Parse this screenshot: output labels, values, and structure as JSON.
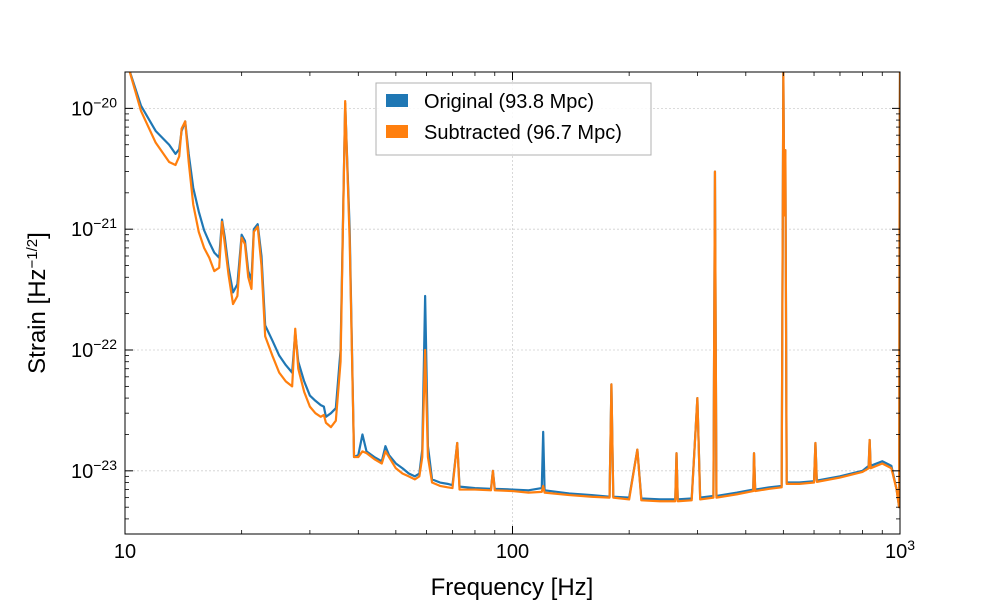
{
  "chart_data": {
    "type": "line",
    "xlabel": "Frequency [Hz]",
    "ylabel": "Strain [Hz",
    "ylabel_exponent": "−1/2",
    "ylabel_close": "]",
    "xscale": "log",
    "yscale": "log",
    "xlim": [
      10,
      1000
    ],
    "ylim": [
      3e-24,
      2e-20
    ],
    "grid": true,
    "legend_position": "top-center",
    "x_ticks": [
      {
        "value": 10,
        "base": "10",
        "exp": ""
      },
      {
        "value": 100,
        "base": "100",
        "exp": ""
      },
      {
        "value": 1000,
        "base": "10",
        "exp": "3"
      }
    ],
    "y_ticks": [
      {
        "value": 1e-20,
        "base": "10",
        "exp": "−20"
      },
      {
        "value": 1e-21,
        "base": "10",
        "exp": "−21"
      },
      {
        "value": 1e-22,
        "base": "10",
        "exp": "−22"
      },
      {
        "value": 1e-23,
        "base": "10",
        "exp": "−23"
      }
    ],
    "series": [
      {
        "name": "Original (93.8 Mpc)",
        "color": "#1f77b4",
        "points": [
          [
            10.2,
            2.2e-20
          ],
          [
            11,
            1.05e-20
          ],
          [
            12,
            6.5e-21
          ],
          [
            13,
            5e-21
          ],
          [
            13.5,
            4.2e-21
          ],
          [
            13.8,
            4.6e-21
          ],
          [
            14,
            6.5e-21
          ],
          [
            14.3,
            7.8e-21
          ],
          [
            14.6,
            4.2e-21
          ],
          [
            15,
            2.2e-21
          ],
          [
            15.5,
            1.4e-21
          ],
          [
            16,
            9.8e-22
          ],
          [
            16.5,
            7.8e-22
          ],
          [
            17,
            6.4e-22
          ],
          [
            17.5,
            5.8e-22
          ],
          [
            17.8,
            1.2e-21
          ],
          [
            18.1,
            8.5e-22
          ],
          [
            18.5,
            4.8e-22
          ],
          [
            19,
            3e-22
          ],
          [
            19.5,
            3.5e-22
          ],
          [
            20,
            9e-22
          ],
          [
            20.4,
            8e-22
          ],
          [
            20.8,
            4.5e-22
          ],
          [
            21.2,
            3.8e-22
          ],
          [
            21.5,
            1e-21
          ],
          [
            22,
            1.1e-21
          ],
          [
            22.5,
            6e-22
          ],
          [
            23,
            1.6e-22
          ],
          [
            24,
            1.2e-22
          ],
          [
            25,
            9e-23
          ],
          [
            26,
            7.5e-23
          ],
          [
            27,
            6.5e-23
          ],
          [
            27.5,
            1.4e-22
          ],
          [
            28,
            8e-23
          ],
          [
            29,
            5.5e-23
          ],
          [
            30,
            4.2e-23
          ],
          [
            31,
            3.8e-23
          ],
          [
            32,
            3.5e-23
          ],
          [
            32.6,
            3.4e-23
          ],
          [
            33,
            2.8e-23
          ],
          [
            34,
            3e-23
          ],
          [
            35,
            3.3e-23
          ],
          [
            36,
            1e-22
          ],
          [
            37,
            1.1e-20
          ],
          [
            38,
            1e-21
          ],
          [
            39,
            1.3e-23
          ],
          [
            40,
            1.35e-23
          ],
          [
            41,
            2e-23
          ],
          [
            42,
            1.45e-23
          ],
          [
            44,
            1.3e-23
          ],
          [
            46,
            1.2e-23
          ],
          [
            47,
            1.6e-23
          ],
          [
            48,
            1.35e-23
          ],
          [
            50,
            1.15e-23
          ],
          [
            52,
            1.05e-23
          ],
          [
            54,
            9.5e-24
          ],
          [
            56,
            9e-24
          ],
          [
            57.5,
            9.5e-24
          ],
          [
            58.5,
            1.5e-23
          ],
          [
            59.5,
            2.8e-22
          ],
          [
            60.5,
            1.6e-23
          ],
          [
            62,
            8.5e-24
          ],
          [
            65,
            8e-24
          ],
          [
            68,
            7.8e-24
          ],
          [
            70,
            7.6e-24
          ],
          [
            72,
            1.7e-23
          ],
          [
            73,
            7.4e-24
          ],
          [
            80,
            7.2e-24
          ],
          [
            88,
            7.1e-24
          ],
          [
            89,
            1e-23
          ],
          [
            90,
            7.1e-24
          ],
          [
            100,
            7e-24
          ],
          [
            110,
            6.9e-24
          ],
          [
            119,
            7.2e-24
          ],
          [
            120,
            2.1e-23
          ],
          [
            121,
            6.9e-24
          ],
          [
            140,
            6.5e-24
          ],
          [
            160,
            6.3e-24
          ],
          [
            178,
            6.1e-24
          ],
          [
            180,
            5.2e-23
          ],
          [
            182,
            6.1e-24
          ],
          [
            200,
            6e-24
          ],
          [
            210,
            1.5e-23
          ],
          [
            215,
            5.9e-24
          ],
          [
            240,
            5.8e-24
          ],
          [
            263,
            5.8e-24
          ],
          [
            265,
            1.4e-23
          ],
          [
            267,
            5.8e-24
          ],
          [
            290,
            5.9e-24
          ],
          [
            300,
            4e-23
          ],
          [
            305,
            6e-24
          ],
          [
            330,
            6.2e-24
          ],
          [
            333,
            3e-21
          ],
          [
            336,
            6.2e-24
          ],
          [
            380,
            6.6e-24
          ],
          [
            418,
            7e-24
          ],
          [
            420,
            1.4e-23
          ],
          [
            423,
            7e-24
          ],
          [
            460,
            7.3e-24
          ],
          [
            495,
            7.5e-24
          ],
          [
            500,
            2e-20
          ],
          [
            503,
            1.3e-21
          ],
          [
            506,
            4.5e-21
          ],
          [
            510,
            8e-24
          ],
          [
            550,
            8e-24
          ],
          [
            600,
            8.2e-24
          ],
          [
            605,
            1.7e-23
          ],
          [
            610,
            8.3e-24
          ],
          [
            700,
            9e-24
          ],
          [
            800,
            1e-23
          ],
          [
            830,
            1.1e-23
          ],
          [
            835,
            1.8e-23
          ],
          [
            840,
            1.1e-23
          ],
          [
            900,
            1.2e-23
          ],
          [
            950,
            1.1e-23
          ],
          [
            980,
            7e-24
          ],
          [
            995,
            5e-24
          ],
          [
            998,
            5e-21
          ],
          [
            1000,
            2e-20
          ]
        ]
      },
      {
        "name": "Subtracted (96.7 Mpc)",
        "color": "#ff7f0e",
        "points": [
          [
            10.2,
            2.2e-20
          ],
          [
            11,
            9.5e-21
          ],
          [
            12,
            5.2e-21
          ],
          [
            13,
            3.6e-21
          ],
          [
            13.5,
            3.4e-21
          ],
          [
            13.8,
            4e-21
          ],
          [
            14,
            6.8e-21
          ],
          [
            14.3,
            7.8e-21
          ],
          [
            14.6,
            3.6e-21
          ],
          [
            15,
            1.6e-21
          ],
          [
            15.5,
            9.5e-22
          ],
          [
            16,
            7e-22
          ],
          [
            16.5,
            5.8e-22
          ],
          [
            17,
            4.5e-22
          ],
          [
            17.5,
            4.8e-22
          ],
          [
            17.8,
            1.15e-21
          ],
          [
            18.1,
            7.5e-22
          ],
          [
            18.5,
            4.2e-22
          ],
          [
            19,
            2.4e-22
          ],
          [
            19.5,
            2.8e-22
          ],
          [
            20,
            8.5e-22
          ],
          [
            20.4,
            7.5e-22
          ],
          [
            20.8,
            4e-22
          ],
          [
            21.2,
            3.2e-22
          ],
          [
            21.5,
            9.5e-22
          ],
          [
            22,
            1.05e-21
          ],
          [
            22.5,
            5e-22
          ],
          [
            23,
            1.3e-22
          ],
          [
            24,
            9e-23
          ],
          [
            25,
            6.5e-23
          ],
          [
            26,
            5.5e-23
          ],
          [
            27,
            5e-23
          ],
          [
            27.5,
            1.5e-22
          ],
          [
            28,
            7e-23
          ],
          [
            29,
            4.5e-23
          ],
          [
            30,
            3.4e-23
          ],
          [
            31,
            3e-23
          ],
          [
            32,
            2.8e-23
          ],
          [
            32.6,
            2.9e-23
          ],
          [
            33,
            2.5e-23
          ],
          [
            34,
            2.3e-23
          ],
          [
            35,
            2.6e-23
          ],
          [
            36,
            8e-23
          ],
          [
            37,
            1.15e-20
          ],
          [
            38,
            8e-22
          ],
          [
            39,
            1.3e-23
          ],
          [
            40,
            1.3e-23
          ],
          [
            41,
            1.45e-23
          ],
          [
            42,
            1.4e-23
          ],
          [
            44,
            1.25e-23
          ],
          [
            46,
            1.15e-23
          ],
          [
            47,
            1.45e-23
          ],
          [
            48,
            1.3e-23
          ],
          [
            50,
            1.05e-23
          ],
          [
            52,
            9.5e-24
          ],
          [
            54,
            9e-24
          ],
          [
            56,
            8.5e-24
          ],
          [
            57.5,
            9e-24
          ],
          [
            58.5,
            1.3e-23
          ],
          [
            59.5,
            1e-22
          ],
          [
            60.5,
            1.3e-23
          ],
          [
            62,
            8e-24
          ],
          [
            65,
            7.5e-24
          ],
          [
            68,
            7.3e-24
          ],
          [
            70,
            7.2e-24
          ],
          [
            72,
            1.7e-23
          ],
          [
            73,
            7e-24
          ],
          [
            80,
            7e-24
          ],
          [
            88,
            6.9e-24
          ],
          [
            89,
            1e-23
          ],
          [
            90,
            6.9e-24
          ],
          [
            100,
            6.8e-24
          ],
          [
            110,
            6.6e-24
          ],
          [
            119,
            6.7e-24
          ],
          [
            120,
            7.5e-24
          ],
          [
            121,
            6.6e-24
          ],
          [
            140,
            6.3e-24
          ],
          [
            160,
            6.1e-24
          ],
          [
            178,
            6e-24
          ],
          [
            180,
            5.2e-23
          ],
          [
            182,
            6e-24
          ],
          [
            200,
            5.8e-24
          ],
          [
            210,
            1.5e-23
          ],
          [
            215,
            5.7e-24
          ],
          [
            240,
            5.6e-24
          ],
          [
            263,
            5.6e-24
          ],
          [
            265,
            1.4e-23
          ],
          [
            267,
            5.6e-24
          ],
          [
            290,
            5.7e-24
          ],
          [
            300,
            4e-23
          ],
          [
            305,
            5.8e-24
          ],
          [
            330,
            6e-24
          ],
          [
            333,
            3e-21
          ],
          [
            336,
            6e-24
          ],
          [
            380,
            6.4e-24
          ],
          [
            418,
            6.8e-24
          ],
          [
            420,
            1.4e-23
          ],
          [
            423,
            6.8e-24
          ],
          [
            460,
            7.1e-24
          ],
          [
            495,
            7.3e-24
          ],
          [
            500,
            2e-20
          ],
          [
            503,
            1.3e-21
          ],
          [
            506,
            4.5e-21
          ],
          [
            510,
            7.8e-24
          ],
          [
            550,
            7.8e-24
          ],
          [
            600,
            8e-24
          ],
          [
            605,
            1.7e-23
          ],
          [
            610,
            8.1e-24
          ],
          [
            700,
            8.8e-24
          ],
          [
            800,
            9.8e-24
          ],
          [
            830,
            1.05e-23
          ],
          [
            835,
            1.8e-23
          ],
          [
            840,
            1.05e-23
          ],
          [
            900,
            1.15e-23
          ],
          [
            950,
            1.05e-23
          ],
          [
            980,
            7e-24
          ],
          [
            995,
            5e-24
          ],
          [
            998,
            5e-21
          ],
          [
            1000,
            2e-20
          ]
        ]
      }
    ]
  }
}
